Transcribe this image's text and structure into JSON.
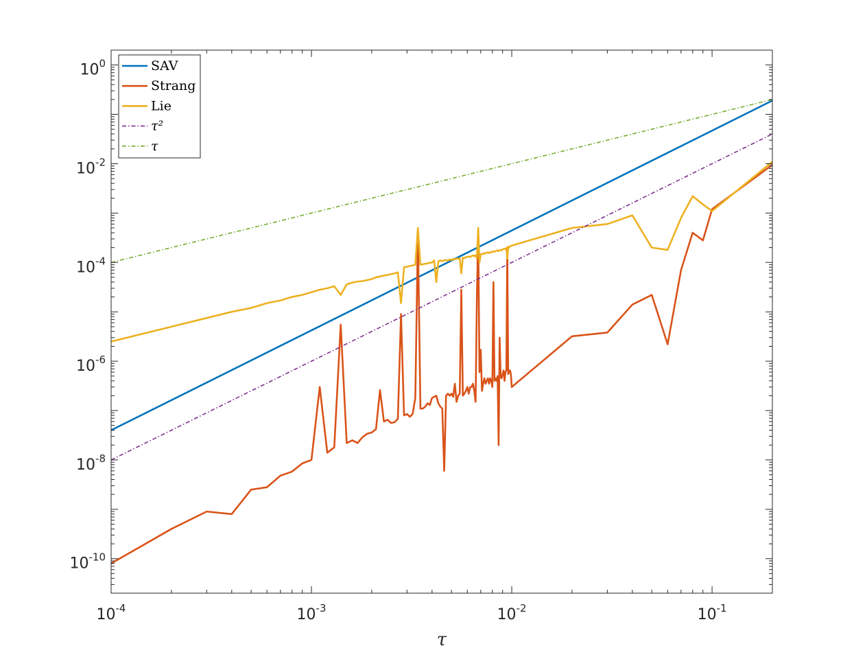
{
  "chart_data": {
    "type": "line",
    "title": "",
    "xlabel": "τ",
    "ylabel": "",
    "xscale": "log",
    "yscale": "log",
    "xlim": [
      0.0001,
      0.2
    ],
    "ylim": [
      2e-11,
      2
    ],
    "grid": false,
    "legend_position": "top-left",
    "x_ticks": [
      {
        "value": 0.0001,
        "base": "10",
        "exp": "-4"
      },
      {
        "value": 0.001,
        "base": "10",
        "exp": "-3"
      },
      {
        "value": 0.01,
        "base": "10",
        "exp": "-2"
      },
      {
        "value": 0.1,
        "base": "10",
        "exp": "-1"
      }
    ],
    "y_ticks": [
      {
        "value": 1e-10,
        "base": "10",
        "exp": "-10"
      },
      {
        "value": 1e-08,
        "base": "10",
        "exp": "-8"
      },
      {
        "value": 1e-06,
        "base": "10",
        "exp": "-6"
      },
      {
        "value": 0.0001,
        "base": "10",
        "exp": "-4"
      },
      {
        "value": 0.01,
        "base": "10",
        "exp": "-2"
      },
      {
        "value": 1,
        "base": "10",
        "exp": "0"
      }
    ],
    "series": [
      {
        "name": "SAV",
        "color": "#0072BD",
        "style": "solid",
        "x": [
          0.0001,
          0.2
        ],
        "y": [
          4e-08,
          0.19
        ]
      },
      {
        "name": "Strang",
        "color": "#D95319",
        "style": "solid",
        "x": [
          0.0001,
          0.0002,
          0.0003,
          0.0004,
          0.0005,
          0.0006,
          0.0007,
          0.0008,
          0.0009,
          0.001,
          0.0011,
          0.0012,
          0.0013,
          0.0014,
          0.0015,
          0.0016,
          0.0017,
          0.0018,
          0.0019,
          0.002,
          0.0021,
          0.0022,
          0.0023,
          0.0024,
          0.0025,
          0.0026,
          0.0027,
          0.0028,
          0.0029,
          0.003,
          0.0031,
          0.0032,
          0.0033,
          0.0034,
          0.0035,
          0.0036,
          0.0037,
          0.0038,
          0.0039,
          0.004,
          0.0041,
          0.0042,
          0.0043,
          0.0044,
          0.0045,
          0.0046,
          0.0047,
          0.0048,
          0.0049,
          0.005,
          0.0051,
          0.0052,
          0.0053,
          0.0054,
          0.0055,
          0.0056,
          0.0057,
          0.0058,
          0.0059,
          0.006,
          0.0061,
          0.0062,
          0.0063,
          0.0064,
          0.0065,
          0.0066,
          0.0067,
          0.0068,
          0.0069,
          0.007,
          0.0071,
          0.0072,
          0.0073,
          0.0074,
          0.0075,
          0.0076,
          0.0077,
          0.0078,
          0.0079,
          0.008,
          0.0081,
          0.0082,
          0.0083,
          0.0084,
          0.0085,
          0.0086,
          0.0087,
          0.0088,
          0.0089,
          0.009,
          0.0091,
          0.0092,
          0.0093,
          0.0094,
          0.0095,
          0.0096,
          0.0097,
          0.0098,
          0.0099,
          0.01,
          0.02,
          0.03,
          0.04,
          0.05,
          0.06,
          0.07,
          0.08,
          0.09,
          0.1,
          0.2
        ],
        "y": [
          8e-11,
          4e-10,
          9e-10,
          8e-10,
          2.5e-09,
          2.8e-09,
          4.8e-09,
          5.8e-09,
          8.5e-09,
          1e-08,
          3e-07,
          1.4e-08,
          1.8e-08,
          5.5e-06,
          2.2e-08,
          2.5e-08,
          2.2e-08,
          2.9e-08,
          3.4e-08,
          3.6e-08,
          4.2e-08,
          2.6e-07,
          6e-08,
          6.5e-08,
          5.6e-08,
          5.8e-08,
          6.8e-08,
          9e-06,
          8e-08,
          8.5e-08,
          7.5e-08,
          8.5e-08,
          1.8e-07,
          0.0004,
          1.1e-07,
          1.1e-07,
          1.2e-07,
          1.4e-07,
          1.3e-07,
          1.8e-07,
          1.9e-07,
          2e-07,
          1.4e-07,
          1.2e-07,
          1.1e-07,
          6e-09,
          2e-07,
          2.2e-07,
          2e-07,
          2.2e-07,
          1.9e-07,
          3.5e-07,
          1.5e-07,
          2e-07,
          2.2e-07,
          2.8e-05,
          2e-07,
          2.2e-07,
          2.5e-07,
          3e-07,
          2.2e-07,
          3e-07,
          3e-07,
          3.5e-07,
          2.5e-07,
          1.5e-07,
          2.2e-05,
          0.0004,
          6e-07,
          1.7e-06,
          2.5e-07,
          3.5e-07,
          4.5e-07,
          3.5e-07,
          4e-07,
          4.5e-07,
          3.5e-07,
          4.5e-07,
          4e-07,
          3e-07,
          4e-05,
          4e-07,
          4.5e-07,
          4e-07,
          5e-07,
          2e-08,
          3e-06,
          5e-07,
          4.5e-07,
          5.5e-07,
          6.5e-07,
          4e-07,
          6e-07,
          6.5e-07,
          0.0002,
          5.5e-07,
          6e-07,
          6.5e-07,
          5.5e-07,
          3e-07,
          3.2e-06,
          3.8e-06,
          1.4e-05,
          2.2e-05,
          2.2e-06,
          7e-05,
          0.0004,
          0.00028,
          0.0012,
          0.0095
        ]
      },
      {
        "name": "Lie",
        "color": "#EDB120",
        "style": "solid",
        "x": [
          0.0001,
          0.0002,
          0.0003,
          0.0004,
          0.0005,
          0.0006,
          0.0007,
          0.0008,
          0.0009,
          0.001,
          0.0011,
          0.0012,
          0.0013,
          0.0014,
          0.0015,
          0.0016,
          0.0017,
          0.0018,
          0.0019,
          0.002,
          0.0021,
          0.0022,
          0.0023,
          0.0024,
          0.0025,
          0.0026,
          0.0027,
          0.0028,
          0.0029,
          0.003,
          0.0031,
          0.0032,
          0.0033,
          0.0034,
          0.0035,
          0.0036,
          0.0037,
          0.0038,
          0.0039,
          0.004,
          0.0041,
          0.0042,
          0.0043,
          0.0044,
          0.0045,
          0.0046,
          0.0047,
          0.0048,
          0.0049,
          0.005,
          0.0051,
          0.0052,
          0.0053,
          0.0054,
          0.0055,
          0.0056,
          0.0057,
          0.0058,
          0.0059,
          0.006,
          0.0061,
          0.0062,
          0.0063,
          0.0064,
          0.0065,
          0.0066,
          0.0067,
          0.0068,
          0.0069,
          0.007,
          0.0071,
          0.0072,
          0.0073,
          0.0074,
          0.0075,
          0.0076,
          0.0077,
          0.0078,
          0.0079,
          0.008,
          0.0081,
          0.0082,
          0.0083,
          0.0084,
          0.0085,
          0.0086,
          0.0087,
          0.0088,
          0.0089,
          0.009,
          0.0091,
          0.0092,
          0.0093,
          0.0094,
          0.0095,
          0.0096,
          0.0097,
          0.0098,
          0.0099,
          0.01,
          0.02,
          0.03,
          0.04,
          0.05,
          0.06,
          0.07,
          0.08,
          0.09,
          0.1,
          0.2
        ],
        "y": [
          2.5e-06,
          5e-06,
          7.5e-06,
          1e-05,
          1.2e-05,
          1.5e-05,
          1.7e-05,
          2e-05,
          2.2e-05,
          2.5e-05,
          2.8e-05,
          3e-05,
          3.3e-05,
          2.2e-05,
          3.6e-05,
          3.9e-05,
          4.1e-05,
          4.2e-05,
          4.4e-05,
          4.6e-05,
          5e-05,
          5.2e-05,
          5.4e-05,
          5.6e-05,
          5.8e-05,
          6e-05,
          6.3e-05,
          1.5e-05,
          8e-05,
          8.2e-05,
          8.5e-05,
          8.7e-05,
          9e-05,
          0.0005,
          9e-05,
          9.2e-05,
          9.4e-05,
          9.6e-05,
          9.8e-05,
          0.0001,
          0.00011,
          4e-05,
          0.000105,
          0.00011,
          0.000106,
          0.00011,
          0.000112,
          0.000108,
          0.000115,
          0.000112,
          0.000118,
          0.000115,
          0.00012,
          0.000118,
          0.000122,
          6e-05,
          0.000125,
          0.000122,
          0.000128,
          0.00013,
          0.000132,
          0.000128,
          0.000135,
          0.000138,
          0.000135,
          0.00014,
          0.00012,
          0.0005,
          0.0001,
          0.000145,
          0.00015,
          0.000148,
          0.000155,
          0.000152,
          0.000158,
          0.00016,
          0.000155,
          0.000162,
          0.00016,
          0.000165,
          0.000168,
          0.000165,
          0.00017,
          0.000172,
          0.000175,
          0.00017,
          0.000178,
          0.00018,
          0.000175,
          0.000185,
          0.000188,
          0.00019,
          0.000185,
          0.000195,
          0.00012,
          0.00021,
          0.0002,
          0.00021,
          0.000215,
          0.00022,
          0.0005,
          0.0006,
          0.0009,
          0.0002,
          0.00018,
          0.0008,
          0.0022,
          0.0015,
          0.0011,
          0.011
        ]
      },
      {
        "name": "τ²",
        "color": "#7E2F8E",
        "style": "dashdot",
        "x": [
          0.0001,
          0.2
        ],
        "y": [
          1e-08,
          0.04
        ]
      },
      {
        "name": "τ",
        "color": "#77AC30",
        "style": "dashdot",
        "x": [
          0.0001,
          0.2
        ],
        "y": [
          0.0001,
          0.2
        ]
      }
    ]
  }
}
